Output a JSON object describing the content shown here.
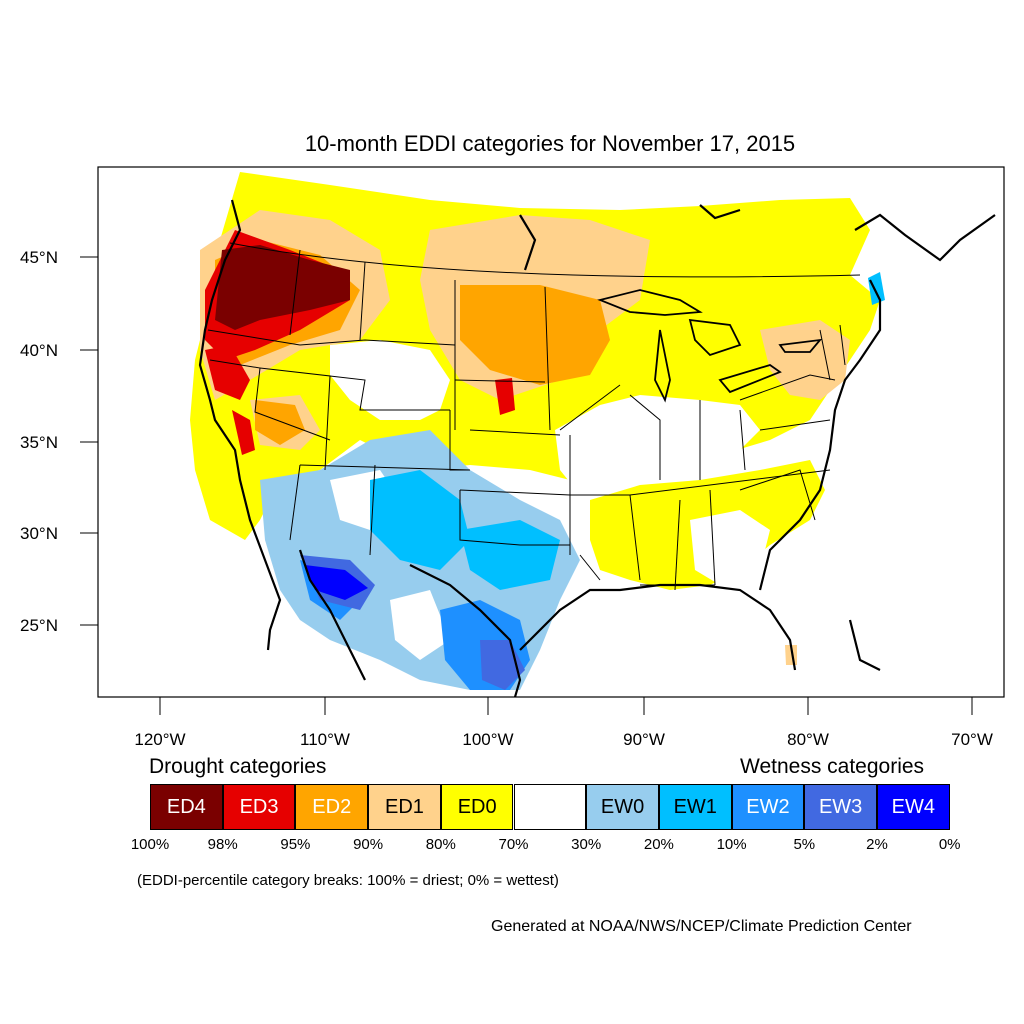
{
  "title": "10-month EDDI categories for November 17, 2015",
  "axes": {
    "lat_labels": [
      "45°N",
      "40°N",
      "35°N",
      "30°N",
      "25°N"
    ],
    "lon_labels": [
      "120°W",
      "110°W",
      "100°W",
      "90°W",
      "80°W",
      "70°W"
    ]
  },
  "legend": {
    "drought_heading": "Drought categories",
    "wetness_heading": "Wetness categories",
    "categories": [
      {
        "label": "ED4",
        "color": "#7a0000",
        "text_color": "#ffffff"
      },
      {
        "label": "ED3",
        "color": "#e60000",
        "text_color": "#ffffff"
      },
      {
        "label": "ED2",
        "color": "#ffa500",
        "text_color": "#ffffff"
      },
      {
        "label": "ED1",
        "color": "#ffd28c",
        "text_color": "#000000"
      },
      {
        "label": "ED0",
        "color": "#ffff00",
        "text_color": "#000000"
      },
      {
        "label": "",
        "color": "#ffffff",
        "text_color": "#000000"
      },
      {
        "label": "EW0",
        "color": "#97cdee",
        "text_color": "#000000"
      },
      {
        "label": "EW1",
        "color": "#00bfff",
        "text_color": "#000000"
      },
      {
        "label": "EW2",
        "color": "#1e90ff",
        "text_color": "#ffffff"
      },
      {
        "label": "EW3",
        "color": "#4169e1",
        "text_color": "#ffffff"
      },
      {
        "label": "EW4",
        "color": "#0000ff",
        "text_color": "#ffffff"
      }
    ],
    "breaks": [
      "100%",
      "98%",
      "95%",
      "90%",
      "80%",
      "70%",
      "30%",
      "20%",
      "10%",
      "5%",
      "2%",
      "0%"
    ],
    "note": "(EDDI-percentile category breaks: 100% = driest; 0% = wettest)"
  },
  "credit": "Generated at NOAA/NWS/NCEP/Climate Prediction Center"
}
